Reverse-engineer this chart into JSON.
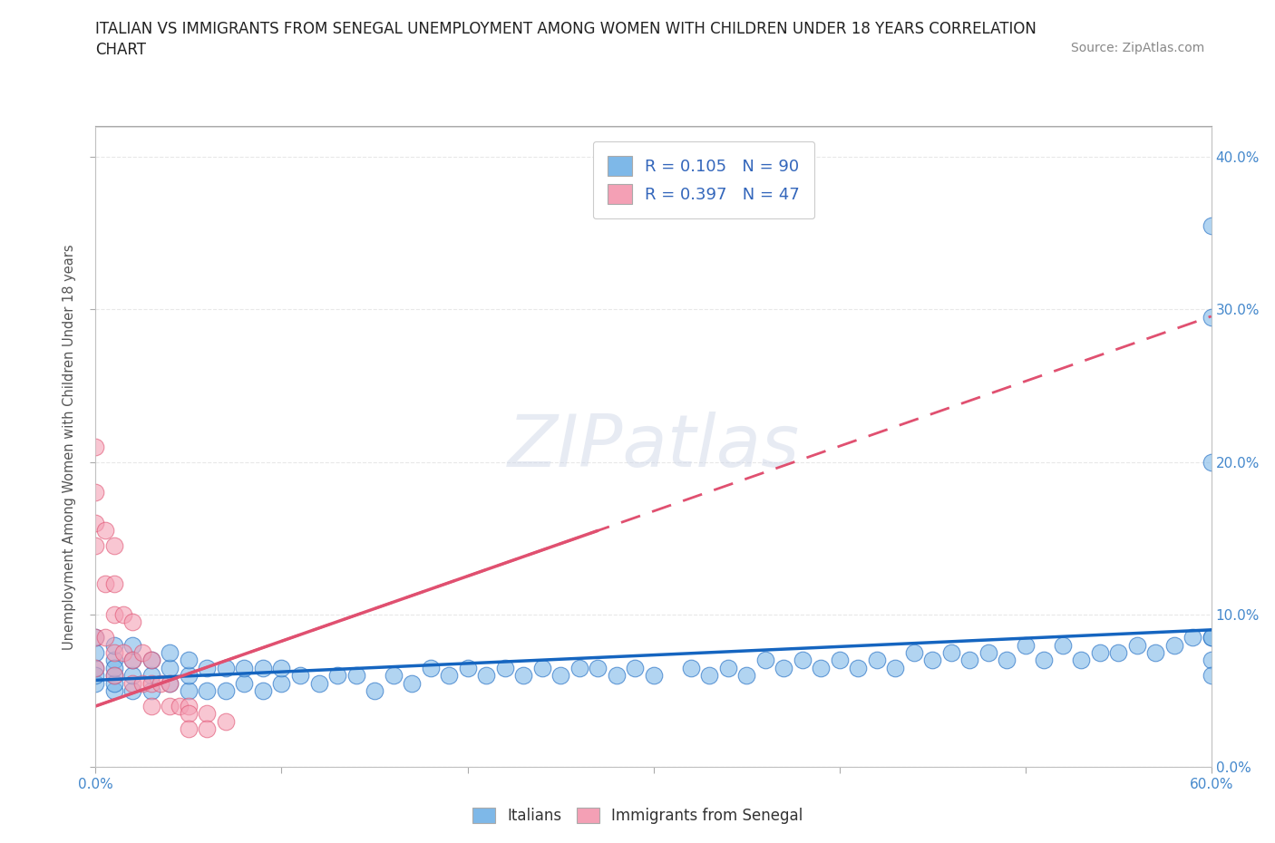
{
  "title_line1": "ITALIAN VS IMMIGRANTS FROM SENEGAL UNEMPLOYMENT AMONG WOMEN WITH CHILDREN UNDER 18 YEARS CORRELATION",
  "title_line2": "CHART",
  "source_text": "Source: ZipAtlas.com",
  "ylabel": "Unemployment Among Women with Children Under 18 years",
  "xlim": [
    0.0,
    0.6
  ],
  "ylim": [
    0.0,
    0.42
  ],
  "xticks": [
    0.0,
    0.1,
    0.2,
    0.3,
    0.4,
    0.5,
    0.6
  ],
  "yticks": [
    0.0,
    0.1,
    0.2,
    0.3,
    0.4
  ],
  "xticklabels_ends": [
    "0.0%",
    "60.0%"
  ],
  "yticklabels_right": [
    "0.0%",
    "10.0%",
    "20.0%",
    "30.0%",
    "40.0%"
  ],
  "italian_color": "#7EB8E8",
  "senegal_color": "#F4A0B5",
  "italian_line_color": "#1565C0",
  "senegal_line_color": "#E05070",
  "R_italian": 0.105,
  "N_italian": 90,
  "R_senegal": 0.397,
  "N_senegal": 47,
  "watermark": "ZIPatlas",
  "background_color": "#ffffff",
  "grid_color": "#e8e8e8",
  "italian_scatter_x": [
    0.0,
    0.0,
    0.0,
    0.0,
    0.0,
    0.01,
    0.01,
    0.01,
    0.01,
    0.01,
    0.01,
    0.02,
    0.02,
    0.02,
    0.02,
    0.03,
    0.03,
    0.03,
    0.04,
    0.04,
    0.04,
    0.05,
    0.05,
    0.05,
    0.06,
    0.06,
    0.07,
    0.07,
    0.08,
    0.08,
    0.09,
    0.09,
    0.1,
    0.1,
    0.11,
    0.12,
    0.13,
    0.14,
    0.15,
    0.16,
    0.17,
    0.18,
    0.19,
    0.2,
    0.21,
    0.22,
    0.23,
    0.24,
    0.25,
    0.26,
    0.27,
    0.28,
    0.29,
    0.3,
    0.32,
    0.34,
    0.36,
    0.38,
    0.4,
    0.42,
    0.44,
    0.46,
    0.48,
    0.5,
    0.52,
    0.54,
    0.56,
    0.58,
    0.59,
    0.6,
    0.33,
    0.35,
    0.37,
    0.39,
    0.41,
    0.43,
    0.45,
    0.47,
    0.49,
    0.51,
    0.53,
    0.55,
    0.57,
    0.6,
    0.6,
    0.6,
    0.6,
    0.6,
    0.6
  ],
  "italian_scatter_y": [
    0.055,
    0.065,
    0.075,
    0.085,
    0.06,
    0.05,
    0.06,
    0.07,
    0.08,
    0.055,
    0.065,
    0.05,
    0.06,
    0.07,
    0.08,
    0.05,
    0.06,
    0.07,
    0.055,
    0.065,
    0.075,
    0.05,
    0.06,
    0.07,
    0.05,
    0.065,
    0.05,
    0.065,
    0.055,
    0.065,
    0.05,
    0.065,
    0.055,
    0.065,
    0.06,
    0.055,
    0.06,
    0.06,
    0.05,
    0.06,
    0.055,
    0.065,
    0.06,
    0.065,
    0.06,
    0.065,
    0.06,
    0.065,
    0.06,
    0.065,
    0.065,
    0.06,
    0.065,
    0.06,
    0.065,
    0.065,
    0.07,
    0.07,
    0.07,
    0.07,
    0.075,
    0.075,
    0.075,
    0.08,
    0.08,
    0.075,
    0.08,
    0.08,
    0.085,
    0.085,
    0.06,
    0.06,
    0.065,
    0.065,
    0.065,
    0.065,
    0.07,
    0.07,
    0.07,
    0.07,
    0.07,
    0.075,
    0.075,
    0.355,
    0.295,
    0.2,
    0.085,
    0.07,
    0.06
  ],
  "senegal_scatter_x": [
    0.0,
    0.0,
    0.0,
    0.0,
    0.0,
    0.0,
    0.005,
    0.005,
    0.005,
    0.01,
    0.01,
    0.01,
    0.01,
    0.01,
    0.015,
    0.015,
    0.02,
    0.02,
    0.02,
    0.025,
    0.025,
    0.03,
    0.03,
    0.03,
    0.035,
    0.04,
    0.04,
    0.045,
    0.05,
    0.05,
    0.05,
    0.06,
    0.06,
    0.07
  ],
  "senegal_scatter_y": [
    0.21,
    0.18,
    0.16,
    0.145,
    0.085,
    0.065,
    0.155,
    0.12,
    0.085,
    0.145,
    0.12,
    0.1,
    0.075,
    0.06,
    0.1,
    0.075,
    0.095,
    0.07,
    0.055,
    0.075,
    0.055,
    0.07,
    0.055,
    0.04,
    0.055,
    0.055,
    0.04,
    0.04,
    0.04,
    0.035,
    0.025,
    0.035,
    0.025,
    0.03
  ],
  "senegal_trendline_x0": 0.0,
  "senegal_trendline_y0": 0.04,
  "senegal_trendline_x1": 0.27,
  "senegal_trendline_y1": 0.155,
  "italian_trendline_x0": 0.0,
  "italian_trendline_y0": 0.057,
  "italian_trendline_x1": 0.6,
  "italian_trendline_y1": 0.09
}
